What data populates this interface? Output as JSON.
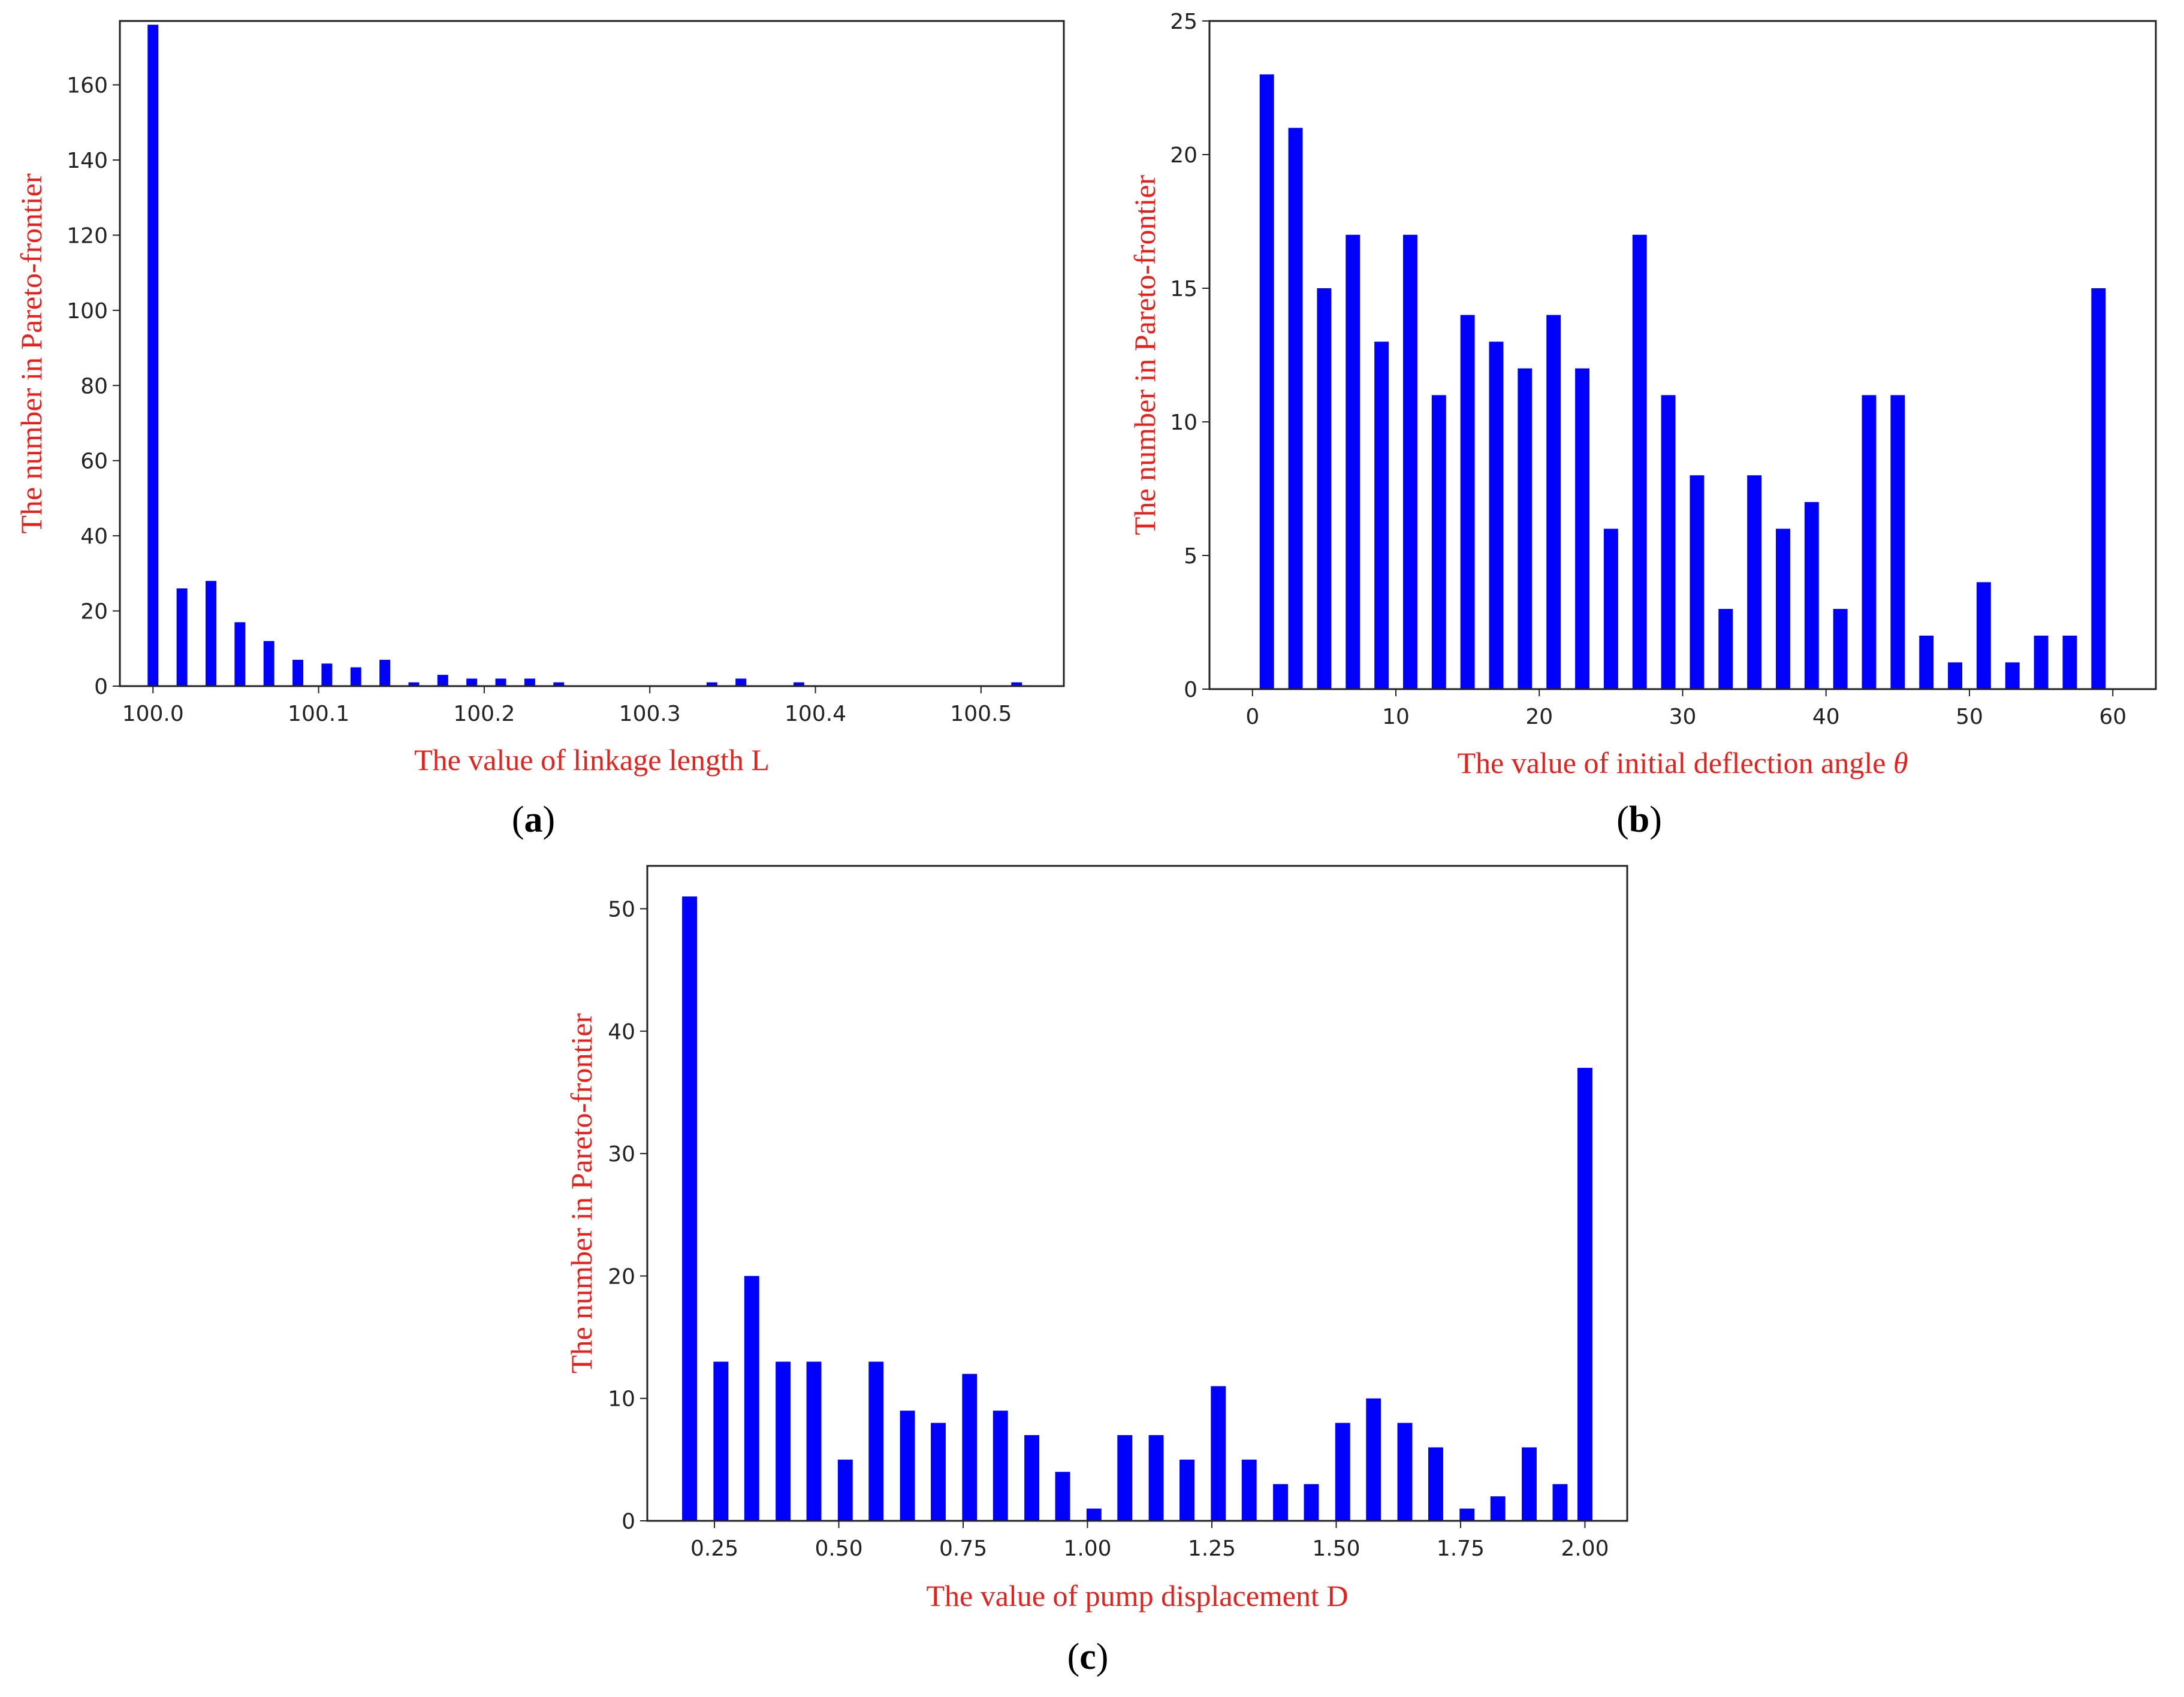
{
  "colors": {
    "bar": "#0000ff",
    "axis_title": "#e8201c",
    "frame": "#222222",
    "background": "#ffffff"
  },
  "chart_data": [
    {
      "id": "a",
      "panel_label": {
        "open": "(",
        "letter": "a",
        "close": ")"
      },
      "type": "bar",
      "title": "",
      "xlabel": "The value of linkage length L",
      "ylabel": "The number in Pareto-frontier",
      "xlim": [
        99.98,
        100.55
      ],
      "ylim": [
        0,
        177
      ],
      "xticks": [
        100.0,
        100.1,
        100.2,
        100.3,
        100.4,
        100.5
      ],
      "xtick_labels": [
        "100.0",
        "100.1",
        "100.2",
        "100.3",
        "100.4",
        "100.5"
      ],
      "yticks": [
        0,
        20,
        40,
        60,
        80,
        100,
        120,
        140,
        160
      ],
      "ytick_labels": [
        "0",
        "20",
        "40",
        "60",
        "80",
        "100",
        "120",
        "140",
        "160"
      ],
      "bar_width": 0.0065,
      "grid": false,
      "x": [
        100.0,
        100.0175,
        100.035,
        100.0525,
        100.07,
        100.0875,
        100.105,
        100.1225,
        100.14,
        100.1575,
        100.175,
        100.1925,
        100.21,
        100.2275,
        100.245,
        100.3375,
        100.355,
        100.39,
        100.5215
      ],
      "values": [
        176,
        26,
        28,
        17,
        12,
        7,
        6,
        5,
        7,
        1,
        3,
        2,
        2,
        2,
        1,
        1,
        2,
        1,
        1
      ]
    },
    {
      "id": "b",
      "panel_label": {
        "open": "(",
        "letter": "b",
        "close": ")"
      },
      "type": "bar",
      "title": "",
      "xlabel": "The value of initial deflection angle",
      "xlabel_symbol": "θ",
      "ylabel": "The number in Pareto-frontier",
      "xlim": [
        -3,
        63
      ],
      "ylim": [
        0,
        25
      ],
      "xticks": [
        0,
        10,
        20,
        30,
        40,
        50,
        60
      ],
      "xtick_labels": [
        "0",
        "10",
        "20",
        "30",
        "40",
        "50",
        "60"
      ],
      "yticks": [
        0,
        5,
        10,
        15,
        20,
        25
      ],
      "ytick_labels": [
        "0",
        "5",
        "10",
        "15",
        "20",
        "25"
      ],
      "bar_width": 1.0,
      "grid": false,
      "x": [
        1,
        3,
        5,
        7,
        9,
        11,
        13,
        15,
        17,
        19,
        21,
        23,
        25,
        27,
        29,
        31,
        33,
        35,
        37,
        39,
        41,
        43,
        45,
        47,
        49,
        51,
        53,
        55,
        57,
        59
      ],
      "values": [
        23,
        21,
        15,
        17,
        13,
        17,
        11,
        14,
        13,
        12,
        14,
        12,
        6,
        17,
        11,
        8,
        3,
        8,
        6,
        7,
        3,
        11,
        11,
        2,
        1,
        4,
        1,
        2,
        2,
        15
      ]
    },
    {
      "id": "c",
      "panel_label": {
        "open": "(",
        "letter": "c",
        "close": ")"
      },
      "type": "bar",
      "title": "",
      "xlabel": "The value of pump displacement D",
      "ylabel": "The number in Pareto-frontier",
      "xlim": [
        0.115,
        2.085
      ],
      "ylim": [
        0,
        53.5
      ],
      "xticks": [
        0.25,
        0.5,
        0.75,
        1.0,
        1.25,
        1.5,
        1.75,
        2.0
      ],
      "xtick_labels": [
        "0.25",
        "0.50",
        "0.75",
        "1.00",
        "1.25",
        "1.50",
        "1.75",
        "2.00"
      ],
      "yticks": [
        0,
        10,
        20,
        30,
        40,
        50
      ],
      "ytick_labels": [
        "0",
        "10",
        "20",
        "30",
        "40",
        "50"
      ],
      "bar_width": 0.03,
      "grid": false,
      "x": [
        0.2,
        0.263,
        0.325,
        0.388,
        0.45,
        0.513,
        0.575,
        0.638,
        0.7,
        0.763,
        0.825,
        0.888,
        0.95,
        1.013,
        1.075,
        1.138,
        1.2,
        1.263,
        1.325,
        1.388,
        1.45,
        1.513,
        1.575,
        1.638,
        1.7,
        1.763,
        1.825,
        1.888,
        1.95,
        2.0
      ],
      "values": [
        51,
        13,
        20,
        13,
        13,
        5,
        13,
        9,
        8,
        12,
        9,
        7,
        4,
        1,
        7,
        7,
        5,
        11,
        5,
        3,
        3,
        8,
        10,
        8,
        6,
        1,
        2,
        6,
        3,
        37
      ]
    }
  ]
}
